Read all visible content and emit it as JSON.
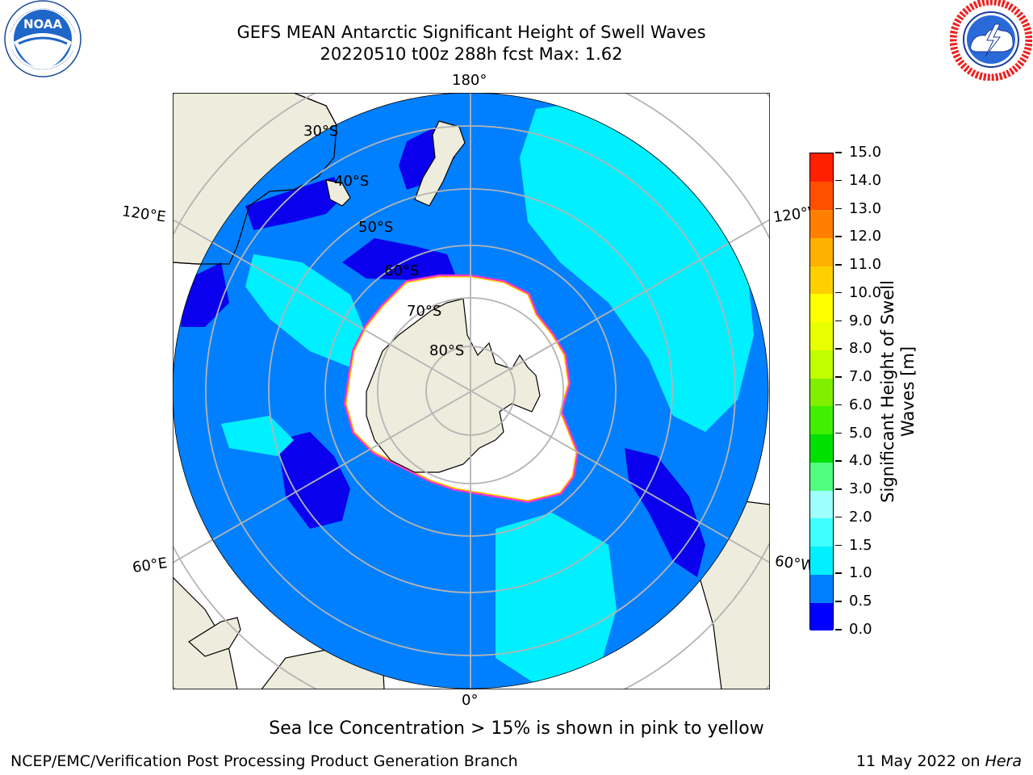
{
  "title": {
    "line1": "GEFS MEAN Antarctic Significant Height of Swell Waves",
    "line2": "20220510 t00z 288h fcst   Max: 1.62"
  },
  "logos": {
    "left": {
      "icon": "noaa-logo",
      "text": "NOAA",
      "ring_text": "NATIONAL OCEANIC AND ATMOSPHERIC ADMINISTRATION · U.S. DEPARTMENT OF COMMERCE"
    },
    "right": {
      "icon": "nws-logo",
      "ring_text": "NATIONAL WEATHER SERVICE"
    }
  },
  "map": {
    "projection": "south-polar-stereographic",
    "longitude_labels": {
      "top": "180°",
      "bottom": "0°",
      "upper_left": "120°E",
      "lower_left": "60°E",
      "upper_right": "120°W",
      "lower_right": "60°W"
    },
    "latitude_labels": [
      "30°S",
      "40°S",
      "50°S",
      "60°S",
      "70°S",
      "80°S"
    ],
    "colors": {
      "land": "#eeecdc",
      "ocean_0_0p5": "#0a00ee",
      "ocean_0p5_1": "#0080ff",
      "ocean_1_1p5": "#00f0ff",
      "ocean_1p5_2": "#33ffff",
      "ice_edge": "#ff33cc",
      "grid": "#b4b4b4"
    }
  },
  "colorbar": {
    "label": "Significant Height of Swell Waves [m]",
    "label_line1": "Significant Height of Swell",
    "label_line2": "Waves [m]",
    "ticks": [
      "0.0",
      "0.5",
      "1.0",
      "1.5",
      "2.0",
      "3.0",
      "4.0",
      "5.0",
      "6.0",
      "7.0",
      "8.0",
      "9.0",
      "10.0",
      "11.0",
      "12.0",
      "13.0",
      "14.0",
      "15.0"
    ],
    "colors": [
      "#0000ff",
      "#0080ff",
      "#00f0ff",
      "#40ffff",
      "#a0ffff",
      "#50ff80",
      "#00e000",
      "#40f000",
      "#80f000",
      "#c0ff00",
      "#e8ff00",
      "#ffff00",
      "#ffd000",
      "#ffb000",
      "#ff8000",
      "#ff5000",
      "#ff2000"
    ]
  },
  "footer": {
    "note": "Sea Ice Concentration > 15% is shown in pink to yellow",
    "left": "NCEP/EMC/Verification Post Processing Product Generation Branch",
    "right_date": "11 May 2022 on ",
    "right_machine": "Hera"
  }
}
